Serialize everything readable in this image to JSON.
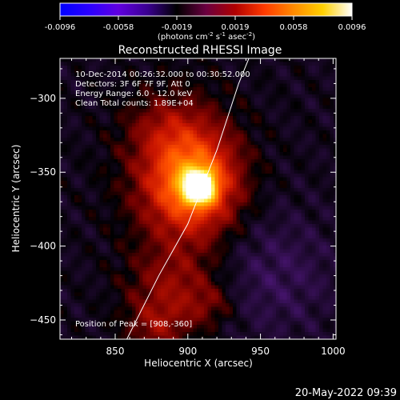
{
  "colorbar": {
    "colors": [
      "#0000ff",
      "#2a00ff",
      "#6000e0",
      "#3a0090",
      "#000000",
      "#6a0040",
      "#b00000",
      "#ff3a00",
      "#ff8a00",
      "#ffd000",
      "#ffffff"
    ],
    "tick_labels": [
      "-0.0096",
      "-0.0058",
      "-0.0019",
      "0.0019",
      "0.0058",
      "0.0096"
    ],
    "units_main": "(photons cm",
    "units_exp1": "-2",
    "units_mid1": " s",
    "units_exp2": "-1",
    "units_mid2": " asec",
    "units_exp3": "-2",
    "units_end": ")"
  },
  "info": {
    "time": "10-Dec-2014 00:26:32.000 to 00:30:52.000",
    "detectors": "Detectors: 3F 6F 7F 9F, Att 0",
    "energy": "Energy Range: 6.0 - 12.0 keV",
    "clean": "Clean     Total counts: 1.89E+04",
    "peak": "Position of Peak = [908,-360]"
  },
  "footer": {
    "timestamp": "20-May-2022 09:39"
  },
  "chart_data": {
    "type": "heatmap",
    "title": "Reconstructed RHESSI Image",
    "xlabel": "Heliocentric X (arcsec)",
    "ylabel": "Heliocentric Y (arcsec)",
    "xlim": [
      812,
      1002
    ],
    "ylim": [
      -463,
      -273
    ],
    "xticks": [
      850,
      900,
      950,
      1000
    ],
    "yticks": [
      -300,
      -350,
      -400,
      -450
    ],
    "peak": {
      "x": 908,
      "y": -360
    },
    "limb_curve": [
      [
        858,
        -463
      ],
      [
        880,
        -420
      ],
      [
        900,
        -385
      ],
      [
        920,
        -335
      ],
      [
        935,
        -290
      ],
      [
        942,
        -273
      ]
    ],
    "sources": [
      {
        "x": 908,
        "y": -360,
        "sx": 7,
        "sy": 7,
        "amp": 1.0
      },
      {
        "x": 904,
        "y": -357,
        "sx": 20,
        "sy": 22,
        "amp": 0.55
      },
      {
        "x": 895,
        "y": -350,
        "sx": 28,
        "sy": 36,
        "amp": 0.22
      },
      {
        "x": 885,
        "y": -320,
        "sx": 18,
        "sy": 14,
        "amp": 0.12
      },
      {
        "x": 890,
        "y": -428,
        "sx": 22,
        "sy": 20,
        "amp": 0.22
      },
      {
        "x": 878,
        "y": -455,
        "sx": 14,
        "sy": 12,
        "amp": 0.18
      },
      {
        "x": 915,
        "y": -440,
        "sx": 12,
        "sy": 10,
        "amp": 0.12
      }
    ]
  }
}
